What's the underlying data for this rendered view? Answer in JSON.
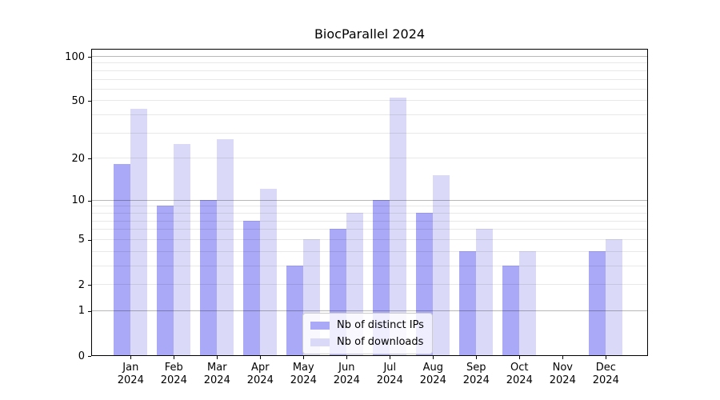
{
  "chart_data": {
    "type": "bar",
    "title": "BiocParallel 2024",
    "categories": [
      "Jan",
      "Feb",
      "Mar",
      "Apr",
      "May",
      "Jun",
      "Jul",
      "Aug",
      "Sep",
      "Oct",
      "Nov",
      "Dec"
    ],
    "x_tick_year": "2024",
    "series": [
      {
        "name": "Nb of distinct IPs",
        "color": "#a9a9f7",
        "values": [
          18,
          9,
          10,
          7,
          3,
          6,
          10,
          8,
          4,
          3,
          0,
          4
        ]
      },
      {
        "name": "Nb of downloads",
        "color": "#dadaf8",
        "values": [
          44,
          25,
          27,
          12,
          5,
          8,
          52,
          15,
          6,
          4,
          0,
          5
        ]
      }
    ],
    "yscale": "log1p",
    "ylim": [
      0,
      115
    ],
    "y_ticks": [
      0,
      1,
      2,
      5,
      10,
      20,
      50,
      100
    ],
    "y_major_gridlines": [
      1,
      10,
      100
    ],
    "y_minor_gridlines": [
      2,
      3,
      4,
      5,
      6,
      7,
      8,
      9,
      20,
      30,
      40,
      50,
      60,
      70,
      80,
      90
    ],
    "grid": true,
    "legend_position": "lower-center-inside",
    "axis_color": "#000000",
    "major_grid_color": "#b5b5b5",
    "minor_grid_color": "#e9e9e9",
    "background_color": "#ffffff"
  }
}
